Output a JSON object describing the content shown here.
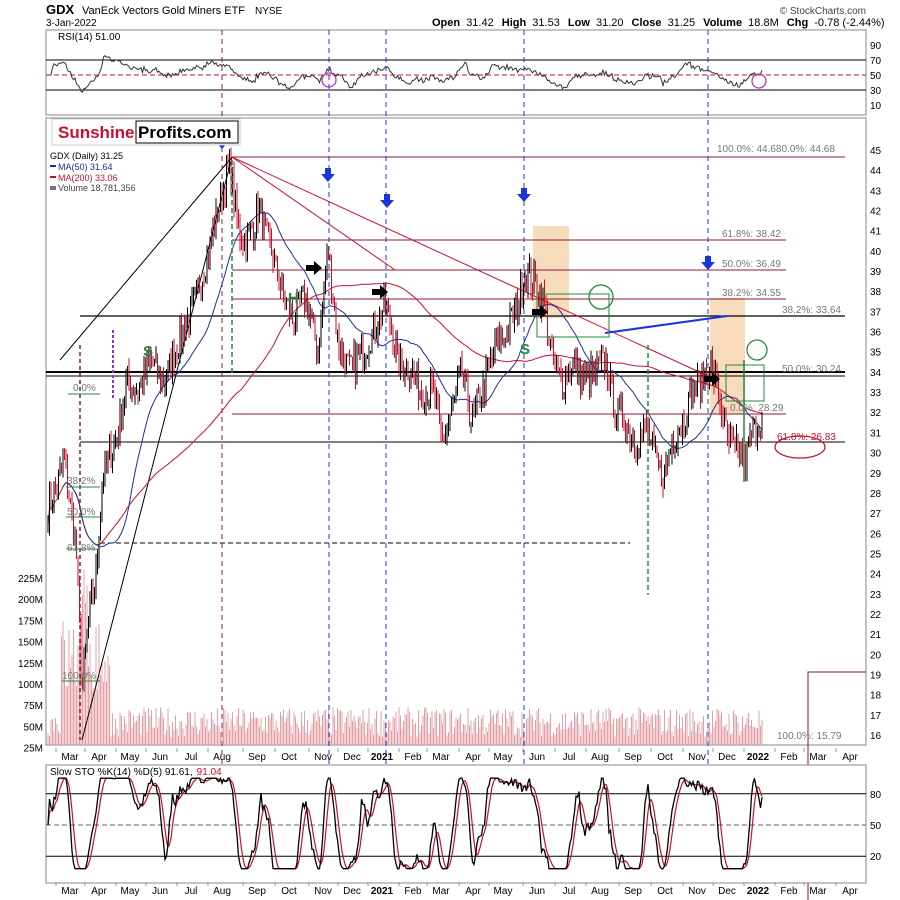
{
  "header": {
    "ticker": "GDX",
    "name": "VanEck Vectors Gold Miners ETF",
    "exchange": "NYSE",
    "date": "3-Jan-2022",
    "quote_open_label": "Open",
    "quote_open": "31.42",
    "quote_high_label": "High",
    "quote_high": "31.53",
    "quote_low_label": "Low",
    "quote_low": "31.20",
    "quote_close_label": "Close",
    "quote_close": "31.25",
    "quote_volume_label": "Volume",
    "quote_volume": "18.8M",
    "quote_chg_label": "Chg",
    "quote_chg": "-0.78 (-2.44%)",
    "credit": "© StockCharts.com"
  },
  "logo": {
    "part1": "Sunshine",
    "part2": "Profits.com"
  },
  "colors": {
    "price_up": "#000000",
    "price_down": "#c8102e",
    "ma50": "#1f2f9a",
    "ma200": "#c8102e",
    "fib_line": "#8b1a3a",
    "arrow": "#1a35e0",
    "green": "#1f8a3c",
    "rsi_line": "#333333",
    "sto_k": "#000000",
    "sto_d": "#c8102e",
    "orange_zone": "#f4cfa3",
    "volume_bar": "#e2a0a5"
  },
  "rsi": {
    "label": "RSI(14) 51.00",
    "ticks": [
      "90",
      "70",
      "50",
      "30",
      "10"
    ],
    "bands": [
      70,
      50,
      30
    ]
  },
  "price_legend": {
    "series": "GDX (Daily) 31.25",
    "ma50": "MA(50) 31.64",
    "ma200": "MA(200) 33.06",
    "volume": "Volume 18,781,356"
  },
  "price_axis": {
    "ticks": [
      "45",
      "44",
      "43",
      "42",
      "41",
      "40",
      "39",
      "38",
      "37",
      "36",
      "35",
      "34",
      "33",
      "32",
      "31",
      "30",
      "29",
      "28",
      "27",
      "26",
      "25",
      "24",
      "23",
      "22",
      "21",
      "20",
      "19",
      "18",
      "17",
      "16"
    ]
  },
  "volume_axis": {
    "ticks": [
      "225M",
      "200M",
      "175M",
      "150M",
      "125M",
      "100M",
      "75M",
      "50M",
      "25M"
    ]
  },
  "months": [
    "Mar",
    "Apr",
    "May",
    "Jun",
    "Jul",
    "Aug",
    "Sep",
    "Oct",
    "Nov",
    "Dec",
    "2021",
    "Feb",
    "Mar",
    "Apr",
    "May",
    "Jun",
    "Jul",
    "Aug",
    "Sep",
    "Oct",
    "Nov",
    "Dec",
    "2022",
    "Feb",
    "Mar",
    "Apr"
  ],
  "fib_labels": {
    "f100a": "100.0%: 44.68",
    "f0a": "0.0%: 44.68",
    "f618a": "61.8%: 38.42",
    "f50a": "50.0%: 36.49",
    "f382a": "38.2%: 34.55",
    "f382b": "38.2%: 33.64",
    "f50b": "50.0%: 30.24",
    "f0b": "0.0%: 28.29",
    "f618b": "61.8%: 26.83",
    "f100b": "100.0%: 15.79",
    "l0": "0.0%",
    "l382": "38.2%",
    "l50": "50.0%",
    "l618": "61.8%",
    "l100": "100.0%"
  },
  "pattern_labels": {
    "s1": "S",
    "h": "H",
    "s2": "S"
  },
  "sto": {
    "label_main": "Slow STO %K(14) %D(5) 91.61,",
    "label_d": "91.04",
    "ticks": [
      "80",
      "50",
      "20"
    ]
  },
  "chart_data": {
    "type": "line",
    "title": "GDX VanEck Vectors Gold Miners ETF NYSE",
    "price_range": [
      15.5,
      45.5
    ],
    "monthly_close_approx": {
      "x": [
        "2020-03",
        "2020-04",
        "2020-05",
        "2020-06",
        "2020-07",
        "2020-08",
        "2020-09",
        "2020-10",
        "2020-11",
        "2020-12",
        "2021-01",
        "2021-02",
        "2021-03",
        "2021-04",
        "2021-05",
        "2021-06",
        "2021-07",
        "2021-08",
        "2021-09",
        "2021-10",
        "2021-11",
        "2021-12",
        "2022-01"
      ],
      "y": [
        22.5,
        29.5,
        32.5,
        35.5,
        39.5,
        41.5,
        38.0,
        36.5,
        35.5,
        36.5,
        34.5,
        32.5,
        33.0,
        35.0,
        38.5,
        33.5,
        34.5,
        33.5,
        30.0,
        31.5,
        34.0,
        30.5,
        31.25
      ]
    },
    "annotations": {
      "resistance": [
        44.68,
        38.42,
        36.49,
        34.55,
        33.64
      ],
      "support": [
        30.24,
        28.29,
        26.83
      ]
    }
  }
}
